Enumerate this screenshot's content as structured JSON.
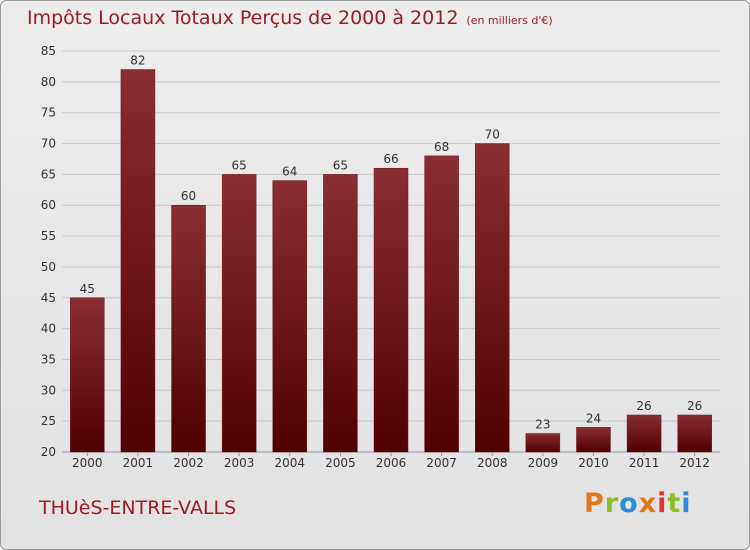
{
  "header": {
    "title": "Impôts Locaux Totaux Perçus de 2000 à 2012",
    "unit": "(en milliers d'€)"
  },
  "footer": {
    "commune": "THUèS-ENTRE-VALLS",
    "logo_text": "Proxiti",
    "logo_colors": [
      "#e2781a",
      "#8dbf25",
      "#2c8fd6",
      "#e2781a",
      "#e53232",
      "#8dbf25",
      "#2c8fd6"
    ]
  },
  "colors": {
    "bar_top": "#8a2e33",
    "bar_bottom": "#500000",
    "grid": "#c8c8c8",
    "axis_text": "#333333",
    "title": "#9b1c24"
  },
  "chart_data": {
    "type": "bar",
    "title": "Impôts Locaux Totaux Perçus de 2000 à 2012",
    "subtitle": "(en milliers d'€)",
    "xlabel": "",
    "ylabel": "",
    "categories": [
      "2000",
      "2001",
      "2002",
      "2003",
      "2004",
      "2005",
      "2006",
      "2007",
      "2008",
      "2009",
      "2010",
      "2011",
      "2012"
    ],
    "values": [
      45,
      82,
      60,
      65,
      64,
      65,
      66,
      68,
      70,
      23,
      24,
      26,
      26
    ],
    "ylim": [
      20,
      85
    ],
    "yticks": [
      20,
      25,
      30,
      35,
      40,
      45,
      50,
      55,
      60,
      65,
      70,
      75,
      80,
      85
    ],
    "grid": true
  }
}
